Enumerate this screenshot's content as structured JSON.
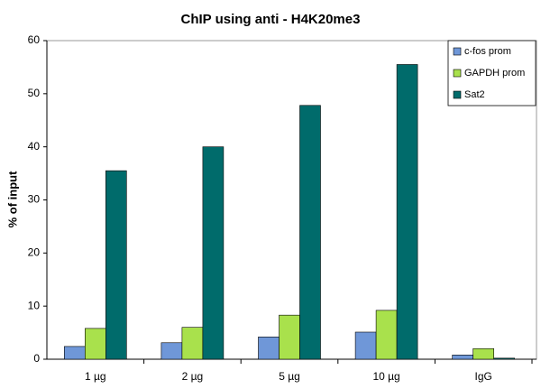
{
  "chart_data": {
    "type": "bar",
    "title": "ChIP using anti - H4K20me3",
    "y_label": "% of input",
    "categories": [
      "1 µg",
      "2 µg",
      "5 µg",
      "10 µg",
      "IgG"
    ],
    "series": [
      {
        "name": "c-fos prom",
        "color": "#6f97d8",
        "values": [
          2.4,
          3.1,
          4.2,
          5.1,
          0.8
        ]
      },
      {
        "name": "GAPDH prom",
        "color": "#a9e14c",
        "values": [
          5.8,
          6.0,
          8.3,
          9.2,
          2.0
        ]
      },
      {
        "name": "Sat2",
        "color": "#006b6b",
        "values": [
          35.5,
          40.0,
          47.8,
          55.5,
          0.2
        ]
      }
    ],
    "ylim": [
      0,
      60
    ],
    "yticks": [
      0,
      10,
      20,
      30,
      40,
      50,
      60
    ],
    "grid": false,
    "legend": "top-right"
  }
}
